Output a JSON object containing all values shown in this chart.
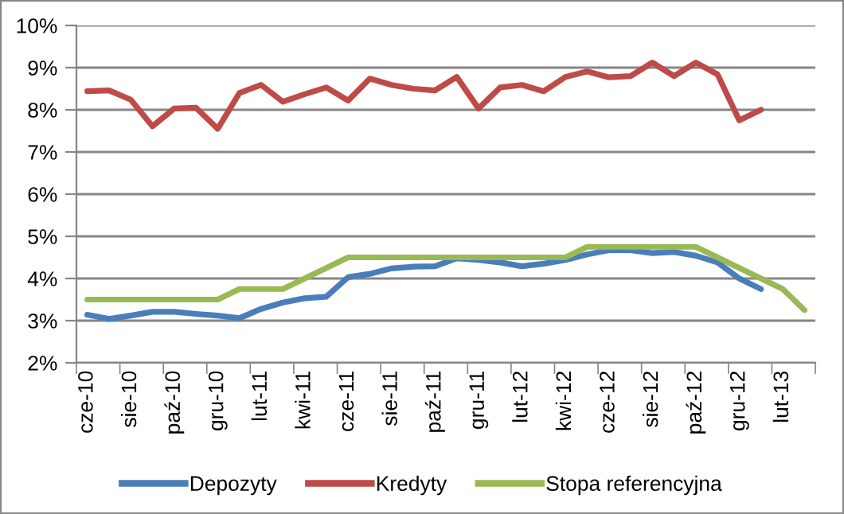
{
  "chart_data": {
    "type": "line",
    "categories": [
      "cze-10",
      null,
      "sie-10",
      null,
      "paź-10",
      null,
      "gru-10",
      null,
      "lut-11",
      null,
      "kwi-11",
      null,
      "cze-11",
      null,
      "sie-11",
      null,
      "paź-11",
      null,
      "gru-11",
      null,
      "lut-12",
      null,
      "kwi-12",
      null,
      "cze-12",
      null,
      "sie-12",
      null,
      "paź-12",
      null,
      "gru-12",
      null,
      "lut-13",
      null
    ],
    "series": [
      {
        "name": "Depozyty",
        "color": "#4a7ebb",
        "values": [
          3.14,
          3.04,
          3.12,
          3.21,
          3.21,
          3.16,
          3.12,
          3.06,
          3.28,
          3.43,
          3.53,
          3.57,
          4.03,
          4.11,
          4.24,
          4.28,
          4.29,
          4.48,
          4.44,
          4.38,
          4.29,
          4.35,
          4.44,
          4.57,
          4.67,
          4.67,
          4.6,
          4.63,
          4.54,
          4.38,
          4.0,
          3.75,
          null,
          null
        ]
      },
      {
        "name": "Kredyty",
        "color": "#be4b48",
        "values": [
          8.44,
          8.46,
          8.24,
          7.61,
          8.03,
          8.05,
          7.55,
          8.4,
          8.59,
          8.19,
          8.37,
          8.53,
          8.22,
          8.74,
          8.59,
          8.5,
          8.46,
          8.78,
          8.03,
          8.53,
          8.59,
          8.44,
          8.78,
          8.91,
          8.77,
          8.8,
          9.12,
          8.8,
          9.12,
          8.84,
          7.75,
          8.0,
          null,
          null
        ]
      },
      {
        "name": "Stopa referencyjna",
        "color": "#98b954",
        "values": [
          3.5,
          3.5,
          3.5,
          3.5,
          3.5,
          3.5,
          3.5,
          3.75,
          3.75,
          3.75,
          4.0,
          4.25,
          4.5,
          4.5,
          4.5,
          4.5,
          4.5,
          4.5,
          4.5,
          4.5,
          4.5,
          4.5,
          4.5,
          4.75,
          4.75,
          4.75,
          4.75,
          4.75,
          4.75,
          4.5,
          4.25,
          4.0,
          3.75,
          3.25
        ]
      }
    ],
    "ylim": [
      2,
      10
    ],
    "yticks": [
      {
        "value": 2,
        "label": "2%"
      },
      {
        "value": 3,
        "label": "3%"
      },
      {
        "value": 4,
        "label": "4%"
      },
      {
        "value": 5,
        "label": "5%"
      },
      {
        "value": 6,
        "label": "6%"
      },
      {
        "value": 7,
        "label": "7%"
      },
      {
        "value": 8,
        "label": "8%"
      },
      {
        "value": 9,
        "label": "9%"
      },
      {
        "value": 10,
        "label": "10%"
      }
    ],
    "grid": "y",
    "legend": "bottom",
    "marker": "none",
    "line_style": "solid"
  }
}
